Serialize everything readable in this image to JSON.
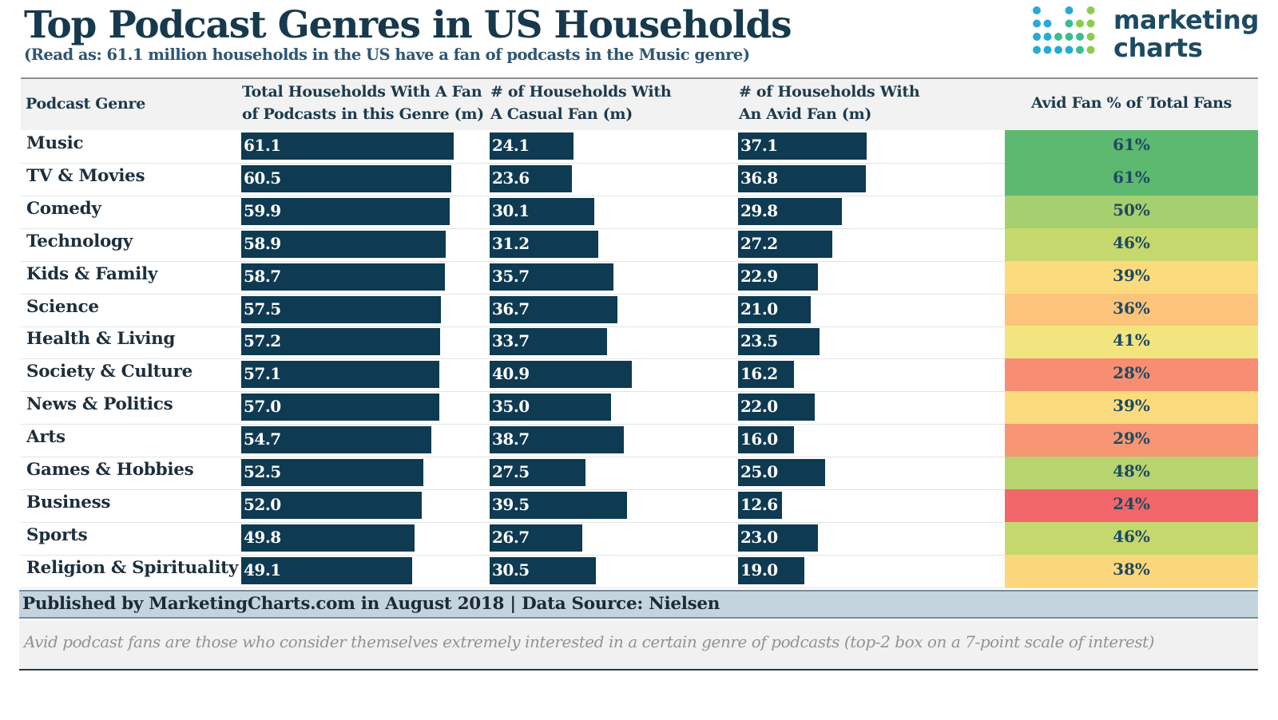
{
  "title": "Top Podcast Genres in US Households",
  "subtitle": "(Read as: 61.1 million households in the US have a fan of podcasts in the Music genre)",
  "logo": {
    "line1": "marketing",
    "line2": "charts",
    "icon": "dot-grid-logo-icon",
    "dot_colors": [
      "#28a9d7",
      "#3dbd8f",
      "#8ccc4a"
    ]
  },
  "header": {
    "genre": "Podcast Genre",
    "total_line1": "Total Households With A Fan",
    "total_line2": "of Podcasts in this Genre (m)",
    "casual_line1": "# of Households With",
    "casual_line2": "A Casual Fan (m)",
    "avid_line1": "# of Households With",
    "avid_line2": "An Avid Fan (m)",
    "pct": "Avid Fan % of Total Fans"
  },
  "colors": {
    "bar": "#0e3a52",
    "header_bg": "#f2f2f2",
    "footer_bg": "#c4d4df",
    "heat_61": "#5cb96f",
    "heat_50": "#a6cf6f",
    "heat_48": "#b7d46f",
    "heat_46": "#c5d86e",
    "heat_41": "#f2e47e",
    "heat_39": "#fbdb7d",
    "heat_38": "#fbd77c",
    "heat_36": "#fbc47a",
    "heat_29": "#f79574",
    "heat_28": "#f78e72",
    "heat_24": "#f2676a"
  },
  "chart_data": {
    "type": "table",
    "columns": [
      "Podcast Genre",
      "Total Households With A Fan of Podcasts in this Genre (m)",
      "# of Households With A Casual Fan (m)",
      "# of Households With An Avid Fan (m)",
      "Avid Fan % of Total Fans"
    ],
    "rows": [
      {
        "genre": "Music",
        "total": "61.1",
        "casual": "24.1",
        "avid": "37.1",
        "pct": "61%",
        "pct_value": 61
      },
      {
        "genre": "TV & Movies",
        "total": "60.5",
        "casual": "23.6",
        "avid": "36.8",
        "pct": "61%",
        "pct_value": 61
      },
      {
        "genre": "Comedy",
        "total": "59.9",
        "casual": "30.1",
        "avid": "29.8",
        "pct": "50%",
        "pct_value": 50
      },
      {
        "genre": "Technology",
        "total": "58.9",
        "casual": "31.2",
        "avid": "27.2",
        "pct": "46%",
        "pct_value": 46
      },
      {
        "genre": "Kids & Family",
        "total": "58.7",
        "casual": "35.7",
        "avid": "22.9",
        "pct": "39%",
        "pct_value": 39
      },
      {
        "genre": "Science",
        "total": "57.5",
        "casual": "36.7",
        "avid": "21.0",
        "pct": "36%",
        "pct_value": 36
      },
      {
        "genre": "Health & Living",
        "total": "57.2",
        "casual": "33.7",
        "avid": "23.5",
        "pct": "41%",
        "pct_value": 41
      },
      {
        "genre": "Society & Culture",
        "total": "57.1",
        "casual": "40.9",
        "avid": "16.2",
        "pct": "28%",
        "pct_value": 28
      },
      {
        "genre": "News & Politics",
        "total": "57.0",
        "casual": "35.0",
        "avid": "22.0",
        "pct": "39%",
        "pct_value": 39
      },
      {
        "genre": "Arts",
        "total": "54.7",
        "casual": "38.7",
        "avid": "16.0",
        "pct": "29%",
        "pct_value": 29
      },
      {
        "genre": "Games & Hobbies",
        "total": "52.5",
        "casual": "27.5",
        "avid": "25.0",
        "pct": "48%",
        "pct_value": 48
      },
      {
        "genre": "Business",
        "total": "52.0",
        "casual": "39.5",
        "avid": "12.6",
        "pct": "24%",
        "pct_value": 24
      },
      {
        "genre": "Sports",
        "total": "49.8",
        "casual": "26.7",
        "avid": "23.0",
        "pct": "46%",
        "pct_value": 46
      },
      {
        "genre": "Religion & Spirituality",
        "total": "49.1",
        "casual": "30.5",
        "avid": "19.0",
        "pct": "38%",
        "pct_value": 38
      }
    ]
  },
  "footer": {
    "published": "Published by MarketingCharts.com in August 2018 | Data Source: Nielsen",
    "note": "Avid podcast fans are those who consider themselves extremely interested in a certain genre of podcasts (top-2 box on a 7-point scale of interest)"
  }
}
